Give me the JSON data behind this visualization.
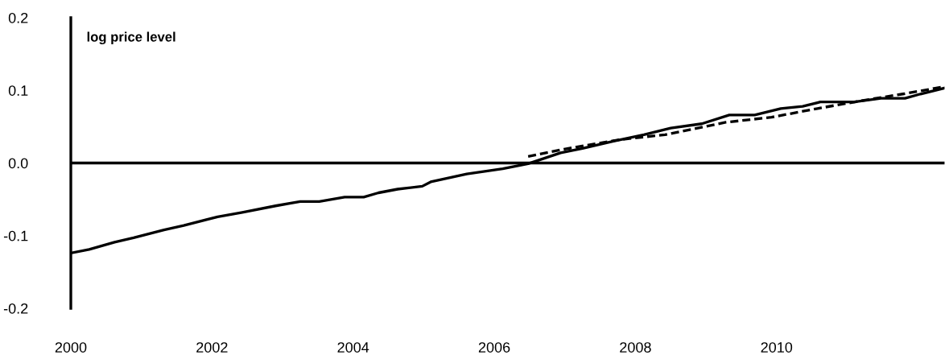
{
  "chart_data": {
    "type": "line",
    "ylabel": "log price level",
    "xlim": [
      2000,
      2012.38
    ],
    "xticks": [
      2000,
      2002,
      2004,
      2006,
      2008,
      2010
    ],
    "ylim": [
      -0.2,
      0.2
    ],
    "yticks": [
      {
        "value": -0.2,
        "label": "-0.2"
      },
      {
        "value": -0.1,
        "label": "-0.1"
      },
      {
        "value": 0,
        "label": "0.0"
      },
      {
        "value": 0.1,
        "label": "0.1"
      },
      {
        "value": 0.2,
        "label": "0.2"
      }
    ],
    "grid": false,
    "legend": false,
    "marker": "none",
    "ref_lines": [
      {
        "axis": "y",
        "value": 0,
        "color": "#000000"
      }
    ],
    "series": [
      {
        "color": "#000000",
        "line_style": "solid",
        "x": [
          2000.0,
          2000.26,
          2000.62,
          2000.89,
          2001.32,
          2001.6,
          2002.08,
          2002.43,
          2002.9,
          2003.25,
          2003.52,
          2003.88,
          2004.15,
          2004.36,
          2004.63,
          2004.98,
          2005.1,
          2005.61,
          2006.12,
          2006.48,
          2006.94,
          2007.25,
          2007.69,
          2008.12,
          2008.5,
          2008.94,
          2009.33,
          2009.69,
          2010.06,
          2010.37,
          2010.62,
          2011.1,
          2011.48,
          2011.82,
          2012.04,
          2012.37
        ],
        "values": [
          -0.124,
          -0.119,
          -0.109,
          -0.103,
          -0.092,
          -0.086,
          -0.074,
          -0.068,
          -0.059,
          -0.053,
          -0.053,
          -0.047,
          -0.047,
          -0.041,
          -0.036,
          -0.032,
          -0.026,
          -0.015,
          -0.008,
          -0.001,
          0.014,
          0.02,
          0.03,
          0.039,
          0.048,
          0.054,
          0.066,
          0.066,
          0.075,
          0.078,
          0.084,
          0.084,
          0.089,
          0.089,
          0.095,
          0.103
        ]
      },
      {
        "color": "#000000",
        "line_style": "dashed",
        "x": [
          2006.48,
          2006.99,
          2007.77,
          2008.42,
          2009.28,
          2009.93,
          2010.58,
          2011.22,
          2011.79,
          2012.37
        ],
        "values": [
          0.009,
          0.019,
          0.032,
          0.039,
          0.056,
          0.063,
          0.075,
          0.086,
          0.095,
          0.105
        ]
      }
    ]
  }
}
